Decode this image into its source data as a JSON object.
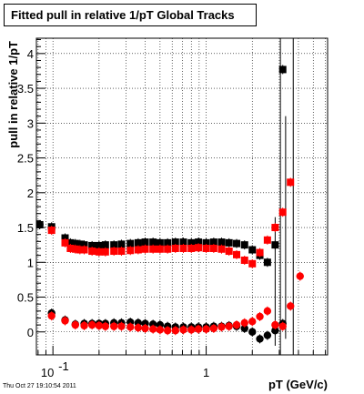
{
  "chart_data": {
    "type": "scatter",
    "title": "Fitted pull in relative 1/pT  Global Tracks",
    "xlabel": "pT (GeV/c)",
    "ylabel": "pull in relative 1/pT",
    "x_scale": "log",
    "xlim": [
      0.078,
      6.2
    ],
    "ylim": [
      -0.33,
      4.22
    ],
    "grid": true,
    "x_tick_labels": [
      {
        "value": 0.1,
        "base": "10",
        "exp": "-1"
      },
      {
        "value": 1,
        "text": "1"
      }
    ],
    "y_ticks": [
      0,
      0.5,
      1,
      1.5,
      2,
      2.5,
      3,
      3.5,
      4
    ],
    "y_tick_labels": [
      "0",
      "0.5",
      "1",
      "1.5",
      "2",
      "2.5",
      "3",
      "3.5",
      "4"
    ],
    "series": [
      {
        "color": "#000000",
        "marker": "square",
        "kind": "width",
        "points": [
          [
            0.082,
            1.54
          ],
          [
            0.098,
            1.51
          ],
          [
            0.12,
            1.35
          ],
          [
            0.13,
            1.28
          ],
          [
            0.14,
            1.27
          ],
          [
            0.15,
            1.26
          ],
          [
            0.16,
            1.25
          ],
          [
            0.18,
            1.24
          ],
          [
            0.2,
            1.24
          ],
          [
            0.22,
            1.25
          ],
          [
            0.25,
            1.25
          ],
          [
            0.28,
            1.26
          ],
          [
            0.32,
            1.27
          ],
          [
            0.36,
            1.28
          ],
          [
            0.4,
            1.29
          ],
          [
            0.45,
            1.29
          ],
          [
            0.5,
            1.28
          ],
          [
            0.56,
            1.28
          ],
          [
            0.63,
            1.29
          ],
          [
            0.71,
            1.29
          ],
          [
            0.8,
            1.28
          ],
          [
            0.89,
            1.29
          ],
          [
            1.0,
            1.28
          ],
          [
            1.12,
            1.29
          ],
          [
            1.26,
            1.29
          ],
          [
            1.41,
            1.28
          ],
          [
            1.58,
            1.27
          ],
          [
            1.78,
            1.25
          ],
          [
            2.0,
            1.18
          ],
          [
            2.24,
            1.1
          ],
          [
            2.51,
            1.0
          ],
          [
            2.82,
            1.25
          ],
          [
            3.16,
            3.77
          ]
        ]
      },
      {
        "color": "#000000",
        "marker": "circle",
        "kind": "mean",
        "points": [
          [
            0.082,
            1.54
          ],
          [
            0.098,
            0.27
          ],
          [
            0.12,
            0.17
          ],
          [
            0.14,
            0.11
          ],
          [
            0.16,
            0.12
          ],
          [
            0.18,
            0.12
          ],
          [
            0.2,
            0.12
          ],
          [
            0.22,
            0.12
          ],
          [
            0.25,
            0.13
          ],
          [
            0.28,
            0.13
          ],
          [
            0.32,
            0.14
          ],
          [
            0.36,
            0.13
          ],
          [
            0.4,
            0.12
          ],
          [
            0.45,
            0.11
          ],
          [
            0.5,
            0.1
          ],
          [
            0.56,
            0.08
          ],
          [
            0.63,
            0.07
          ],
          [
            0.71,
            0.07
          ],
          [
            0.8,
            0.07
          ],
          [
            0.89,
            0.07
          ],
          [
            1.0,
            0.07
          ],
          [
            1.12,
            0.08
          ],
          [
            1.26,
            0.08
          ],
          [
            1.41,
            0.09
          ],
          [
            1.58,
            0.08
          ],
          [
            1.78,
            0.05
          ],
          [
            2.0,
            0.0
          ],
          [
            2.24,
            -0.1
          ],
          [
            2.51,
            -0.05
          ],
          [
            2.82,
            0.02
          ],
          [
            3.16,
            0.12
          ]
        ]
      },
      {
        "color": "#ff0000",
        "marker": "square",
        "kind": "width",
        "points": [
          [
            0.098,
            1.46
          ],
          [
            0.12,
            1.28
          ],
          [
            0.13,
            1.2
          ],
          [
            0.14,
            1.19
          ],
          [
            0.15,
            1.18
          ],
          [
            0.16,
            1.18
          ],
          [
            0.18,
            1.16
          ],
          [
            0.2,
            1.15
          ],
          [
            0.22,
            1.15
          ],
          [
            0.25,
            1.16
          ],
          [
            0.28,
            1.16
          ],
          [
            0.32,
            1.17
          ],
          [
            0.36,
            1.18
          ],
          [
            0.4,
            1.19
          ],
          [
            0.45,
            1.19
          ],
          [
            0.5,
            1.19
          ],
          [
            0.56,
            1.19
          ],
          [
            0.63,
            1.2
          ],
          [
            0.71,
            1.2
          ],
          [
            0.8,
            1.2
          ],
          [
            0.89,
            1.21
          ],
          [
            1.0,
            1.2
          ],
          [
            1.12,
            1.2
          ],
          [
            1.26,
            1.19
          ],
          [
            1.41,
            1.16
          ],
          [
            1.58,
            1.11
          ],
          [
            1.78,
            1.03
          ],
          [
            2.0,
            0.98
          ],
          [
            2.24,
            1.14
          ],
          [
            2.51,
            1.32
          ],
          [
            2.82,
            1.5
          ],
          [
            3.16,
            1.72
          ],
          [
            3.55,
            2.15
          ]
        ]
      },
      {
        "color": "#ff0000",
        "marker": "circle",
        "kind": "mean",
        "points": [
          [
            0.098,
            0.23
          ],
          [
            0.12,
            0.16
          ],
          [
            0.14,
            0.1
          ],
          [
            0.16,
            0.09
          ],
          [
            0.18,
            0.1
          ],
          [
            0.2,
            0.09
          ],
          [
            0.22,
            0.08
          ],
          [
            0.25,
            0.08
          ],
          [
            0.28,
            0.08
          ],
          [
            0.32,
            0.07
          ],
          [
            0.36,
            0.06
          ],
          [
            0.4,
            0.05
          ],
          [
            0.45,
            0.04
          ],
          [
            0.5,
            0.03
          ],
          [
            0.56,
            0.02
          ],
          [
            0.63,
            0.02
          ],
          [
            0.71,
            0.03
          ],
          [
            0.8,
            0.03
          ],
          [
            0.89,
            0.04
          ],
          [
            1.0,
            0.04
          ],
          [
            1.12,
            0.05
          ],
          [
            1.26,
            0.07
          ],
          [
            1.41,
            0.08
          ],
          [
            1.58,
            0.1
          ],
          [
            1.78,
            0.13
          ],
          [
            2.0,
            0.15
          ],
          [
            2.24,
            0.22
          ],
          [
            2.51,
            0.3
          ],
          [
            2.82,
            0.1
          ],
          [
            3.16,
            0.08
          ],
          [
            3.55,
            0.37
          ],
          [
            4.1,
            0.8
          ]
        ]
      }
    ],
    "error_bars": [
      {
        "x": 2.82,
        "lo": -0.2,
        "hi": 1.65
      },
      {
        "x": 3.05,
        "lo": -0.33,
        "hi": 4.22
      },
      {
        "x": 3.3,
        "lo": -0.1,
        "hi": 3.1
      },
      {
        "x": 3.7,
        "lo": -0.33,
        "hi": 4.22
      }
    ]
  },
  "timestamp": "Thu Oct 27 19:10:54 2011"
}
